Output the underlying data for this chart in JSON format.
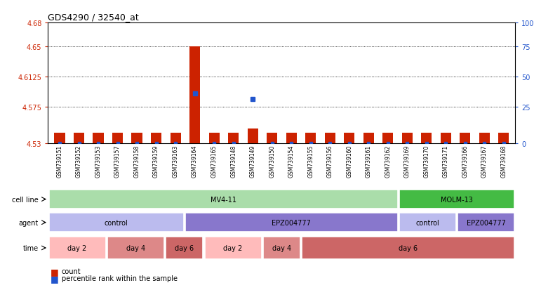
{
  "title": "GDS4290 / 32540_at",
  "samples": [
    "GSM739151",
    "GSM739152",
    "GSM739153",
    "GSM739157",
    "GSM739158",
    "GSM739159",
    "GSM739163",
    "GSM739164",
    "GSM739165",
    "GSM739148",
    "GSM739149",
    "GSM739150",
    "GSM739154",
    "GSM739155",
    "GSM739156",
    "GSM739160",
    "GSM739161",
    "GSM739162",
    "GSM739169",
    "GSM739170",
    "GSM739171",
    "GSM739166",
    "GSM739167",
    "GSM739168"
  ],
  "bar_values": [
    4.543,
    4.543,
    4.543,
    4.543,
    4.543,
    4.543,
    4.543,
    4.65,
    4.543,
    4.543,
    4.548,
    4.543,
    4.543,
    4.543,
    4.543,
    4.543,
    4.543,
    4.543,
    4.543,
    4.543,
    4.543,
    4.543,
    4.543,
    4.543
  ],
  "percentile_values": [
    4.53,
    4.53,
    4.53,
    4.53,
    4.53,
    4.53,
    4.53,
    4.592,
    4.53,
    4.53,
    4.585,
    4.53,
    4.53,
    4.53,
    4.53,
    4.53,
    4.53,
    4.53,
    4.53,
    4.53,
    4.53,
    4.53,
    4.53,
    4.53
  ],
  "y_min": 4.53,
  "y_max": 4.68,
  "y_ticks": [
    4.53,
    4.575,
    4.6125,
    4.65,
    4.68
  ],
  "y_tick_labels": [
    "4.53",
    "4.575",
    "4.6125",
    "4.65",
    "4.68"
  ],
  "right_y_ticks": [
    4.53,
    4.575,
    4.6125,
    4.65,
    4.68
  ],
  "right_y_tick_labels": [
    "0",
    "25",
    "50",
    "75",
    "100%"
  ],
  "bar_color": "#cc2200",
  "percentile_color": "#2255cc",
  "cell_line_row": [
    {
      "label": "MV4-11",
      "start": 0,
      "end": 18,
      "color": "#aaddaa"
    },
    {
      "label": "MOLM-13",
      "start": 18,
      "end": 24,
      "color": "#44bb44"
    }
  ],
  "agent_row": [
    {
      "label": "control",
      "start": 0,
      "end": 7,
      "color": "#bbbbee"
    },
    {
      "label": "EPZ004777",
      "start": 7,
      "end": 18,
      "color": "#8877cc"
    },
    {
      "label": "control",
      "start": 18,
      "end": 21,
      "color": "#bbbbee"
    },
    {
      "label": "EPZ004777",
      "start": 21,
      "end": 24,
      "color": "#8877cc"
    }
  ],
  "time_row": [
    {
      "label": "day 2",
      "start": 0,
      "end": 3,
      "color": "#ffbbbb"
    },
    {
      "label": "day 4",
      "start": 3,
      "end": 6,
      "color": "#dd8888"
    },
    {
      "label": "day 6",
      "start": 6,
      "end": 8,
      "color": "#cc6666"
    },
    {
      "label": "day 2",
      "start": 8,
      "end": 11,
      "color": "#ffbbbb"
    },
    {
      "label": "day 4",
      "start": 11,
      "end": 13,
      "color": "#dd8888"
    },
    {
      "label": "day 6",
      "start": 13,
      "end": 24,
      "color": "#cc6666"
    }
  ],
  "grid_lines": [
    4.575,
    4.6125,
    4.65
  ]
}
